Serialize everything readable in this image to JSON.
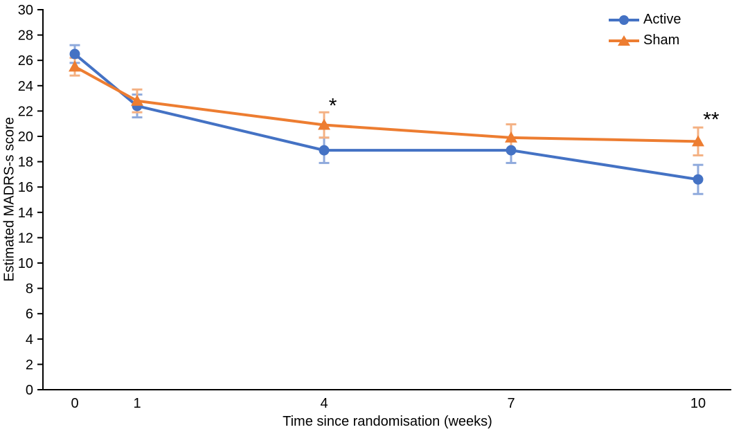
{
  "chart_data": {
    "type": "line",
    "title": "",
    "xlabel": "Time since randomisation (weeks)",
    "ylabel": "Estimated MADRS-s score",
    "x": [
      0,
      1,
      4,
      7,
      10
    ],
    "x_tick_labels": [
      "0",
      "1",
      "4",
      "7",
      "10"
    ],
    "ylim": [
      0,
      30
    ],
    "ytick_step": 2,
    "grid": false,
    "legend_position": "top-right",
    "background": "#FFFFFF",
    "axis_color": "#000000",
    "text_color": "#000000",
    "series": [
      {
        "name": "Active",
        "marker": "circle",
        "color": "#4472C4",
        "error_color": "#8FAADC",
        "values": [
          26.5,
          22.4,
          18.9,
          18.9,
          16.6
        ],
        "yerr": [
          0.7,
          0.9,
          1.0,
          1.0,
          1.15
        ]
      },
      {
        "name": "Sham",
        "marker": "triangle",
        "color": "#ED7D31",
        "error_color": "#F4B183",
        "values": [
          25.5,
          22.8,
          20.9,
          19.9,
          19.6
        ],
        "yerr": [
          0.7,
          0.9,
          1.0,
          1.05,
          1.1
        ]
      }
    ],
    "annotations": [
      {
        "text": "*",
        "x": 4.14,
        "y": 22.7
      },
      {
        "text": "**",
        "x": 10.21,
        "y": 21.6
      }
    ]
  }
}
